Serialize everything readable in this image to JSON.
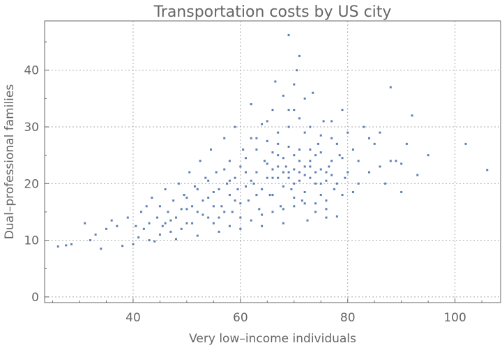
{
  "chart_data": {
    "type": "scatter",
    "title": "Transportation costs by US city",
    "xlabel": "Very low–income individuals",
    "ylabel": "Dual–professional families",
    "xlim": [
      23.5,
      108.5
    ],
    "ylim": [
      -1,
      48.7
    ],
    "xticks": [
      40,
      60,
      80,
      100
    ],
    "yticks": [
      0,
      10,
      20,
      30,
      40
    ],
    "x_minor_step": 5,
    "y_minor_step": 5,
    "grid": true,
    "color": "#5E81B5",
    "points": [
      [
        26,
        8.9
      ],
      [
        27.5,
        9.1
      ],
      [
        28.5,
        9.3
      ],
      [
        31,
        13
      ],
      [
        32,
        10
      ],
      [
        33,
        11
      ],
      [
        34,
        8.5
      ],
      [
        35,
        12
      ],
      [
        36,
        13.5
      ],
      [
        37,
        12.5
      ],
      [
        38,
        9
      ],
      [
        39,
        14
      ],
      [
        40,
        9.3
      ],
      [
        40.5,
        12.5
      ],
      [
        41,
        10.5
      ],
      [
        41.5,
        15
      ],
      [
        42,
        12
      ],
      [
        42.5,
        16
      ],
      [
        43,
        13
      ],
      [
        43.5,
        17.5
      ],
      [
        44,
        9.8
      ],
      [
        44.5,
        14
      ],
      [
        45,
        16
      ],
      [
        45.5,
        12.5
      ],
      [
        46,
        19
      ],
      [
        46.5,
        15
      ],
      [
        47,
        13.5
      ],
      [
        47.5,
        17
      ],
      [
        48,
        10.2
      ],
      [
        48.5,
        20
      ],
      [
        49,
        15.5
      ],
      [
        49.5,
        18
      ],
      [
        50,
        13
      ],
      [
        50.5,
        22
      ],
      [
        51,
        16
      ],
      [
        51.5,
        19.5
      ],
      [
        52,
        10.8
      ],
      [
        52.5,
        24
      ],
      [
        53,
        17
      ],
      [
        53.5,
        21
      ],
      [
        54,
        14
      ],
      [
        54.5,
        26
      ],
      [
        55,
        18.5
      ],
      [
        55.5,
        22
      ],
      [
        56,
        11.5
      ],
      [
        56.5,
        16
      ],
      [
        57,
        28
      ],
      [
        57.5,
        20
      ],
      [
        58,
        24
      ],
      [
        58.5,
        15
      ],
      [
        59,
        30
      ],
      [
        59.5,
        19
      ],
      [
        60,
        12
      ],
      [
        60.5,
        26
      ],
      [
        61,
        22
      ],
      [
        61.5,
        17
      ],
      [
        62,
        34
      ],
      [
        62.5,
        20
      ],
      [
        63,
        28
      ],
      [
        63.5,
        15.5
      ],
      [
        64,
        12.5
      ],
      [
        64.5,
        24
      ],
      [
        65,
        31
      ],
      [
        65.5,
        18
      ],
      [
        66,
        21
      ],
      [
        66.5,
        38
      ],
      [
        67,
        27
      ],
      [
        67.5,
        16
      ],
      [
        68,
        13
      ],
      [
        68.5,
        23
      ],
      [
        69,
        33
      ],
      [
        69.5,
        19
      ],
      [
        70,
        25
      ],
      [
        70.5,
        40
      ],
      [
        71,
        22
      ],
      [
        71.5,
        17
      ],
      [
        72,
        29
      ],
      [
        72.5,
        13.5
      ],
      [
        73,
        24
      ],
      [
        73.5,
        36
      ],
      [
        74,
        20
      ],
      [
        74.5,
        27
      ],
      [
        75,
        18
      ],
      [
        75.5,
        31
      ],
      [
        76,
        14
      ],
      [
        76.5,
        23
      ],
      [
        77,
        28
      ],
      [
        77.5,
        19
      ],
      [
        78,
        14.2
      ],
      [
        78.5,
        25
      ],
      [
        79,
        33
      ],
      [
        79.5,
        21
      ],
      [
        80,
        29
      ],
      [
        81,
        18.5
      ],
      [
        82,
        24
      ],
      [
        83,
        30
      ],
      [
        84,
        22
      ],
      [
        85,
        27
      ],
      [
        86,
        23
      ],
      [
        87,
        20
      ],
      [
        88,
        37
      ],
      [
        89,
        24
      ],
      [
        90,
        23.5
      ],
      [
        92,
        32
      ],
      [
        93,
        21.5
      ],
      [
        95,
        25
      ],
      [
        102,
        27
      ],
      [
        106,
        22.4
      ],
      [
        62,
        20.5
      ],
      [
        63,
        22
      ],
      [
        64,
        19
      ],
      [
        65,
        23.5
      ],
      [
        66,
        25.5
      ],
      [
        67,
        21
      ],
      [
        68,
        24.5
      ],
      [
        69,
        22
      ],
      [
        70,
        20
      ],
      [
        71,
        26
      ],
      [
        72,
        23
      ],
      [
        73,
        21
      ],
      [
        74,
        25
      ],
      [
        75,
        22.5
      ],
      [
        76,
        20.5
      ],
      [
        77,
        24
      ],
      [
        66,
        18
      ],
      [
        68,
        19.5
      ],
      [
        70,
        17.5
      ],
      [
        72,
        18.5
      ],
      [
        74,
        16.5
      ],
      [
        76,
        17
      ],
      [
        58,
        18
      ],
      [
        60,
        16.5
      ],
      [
        56,
        19
      ],
      [
        54,
        17.5
      ],
      [
        52,
        15
      ],
      [
        50,
        15.5
      ],
      [
        57,
        22.5
      ],
      [
        59,
        21
      ],
      [
        61,
        24.5
      ],
      [
        63,
        26
      ],
      [
        65,
        27.5
      ],
      [
        67,
        29
      ],
      [
        69,
        30
      ],
      [
        71,
        31.5
      ],
      [
        73,
        30
      ],
      [
        75,
        28.5
      ],
      [
        70,
        33
      ],
      [
        72,
        35
      ],
      [
        68,
        35.5
      ],
      [
        66,
        33
      ],
      [
        64,
        30.5
      ],
      [
        62,
        28
      ],
      [
        60,
        23
      ],
      [
        58,
        20.5
      ],
      [
        55,
        16
      ],
      [
        53,
        14.5
      ],
      [
        51,
        13
      ],
      [
        49,
        12
      ],
      [
        47,
        11.5
      ],
      [
        45,
        11
      ],
      [
        43,
        10
      ],
      [
        46,
        13
      ],
      [
        48,
        14
      ],
      [
        50,
        17.5
      ],
      [
        52,
        19
      ],
      [
        54,
        20.5
      ],
      [
        56,
        14
      ],
      [
        58,
        12.5
      ],
      [
        60,
        14
      ],
      [
        62,
        13.5
      ],
      [
        64,
        14.5
      ],
      [
        66,
        15
      ],
      [
        68,
        15.5
      ],
      [
        70,
        16
      ],
      [
        72,
        16.5
      ],
      [
        74,
        15
      ],
      [
        76,
        15.5
      ],
      [
        69,
        46.2
      ],
      [
        71,
        42.5
      ],
      [
        70,
        37.5
      ],
      [
        67,
        25
      ],
      [
        69,
        26.5
      ],
      [
        71,
        24
      ],
      [
        73,
        26
      ],
      [
        75,
        25.5
      ],
      [
        77,
        21.5
      ],
      [
        65,
        21
      ],
      [
        63,
        18
      ],
      [
        61,
        19.5
      ],
      [
        59,
        17
      ],
      [
        57,
        15
      ],
      [
        55,
        13
      ],
      [
        70,
        22.5
      ],
      [
        71,
        20.5
      ],
      [
        72,
        21.5
      ],
      [
        73,
        23
      ],
      [
        69,
        21
      ],
      [
        68,
        22
      ],
      [
        67,
        23
      ],
      [
        66,
        22.5
      ],
      [
        74,
        22
      ],
      [
        75,
        20
      ],
      [
        76,
        22
      ],
      [
        78,
        20
      ],
      [
        79,
        18
      ],
      [
        80,
        22
      ],
      [
        81,
        26
      ],
      [
        78,
        27
      ],
      [
        77,
        31
      ],
      [
        79,
        24.5
      ],
      [
        82,
        20
      ],
      [
        84,
        28
      ],
      [
        86,
        29
      ],
      [
        88,
        24
      ],
      [
        90,
        18.5
      ],
      [
        91,
        27
      ]
    ]
  }
}
